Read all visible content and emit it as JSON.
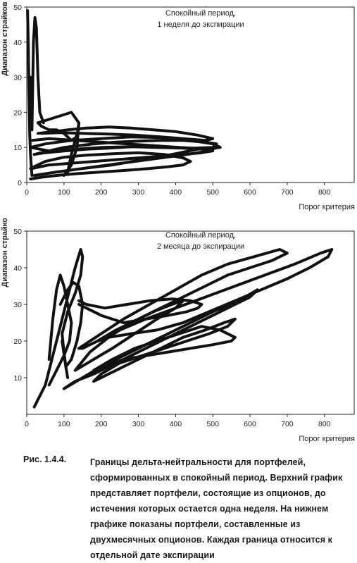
{
  "chart_data": [
    {
      "type": "line",
      "title": "Спокойный период,",
      "subtitle": "1 неделя до экспирации",
      "xlabel": "Порог критерия",
      "ylabel": "Диапазон страйков",
      "xlim": [
        0,
        880
      ],
      "ylim": [
        0,
        50
      ],
      "x_ticks": [
        0,
        100,
        200,
        300,
        400,
        500,
        600,
        700,
        800
      ],
      "y_ticks": [
        0,
        10,
        20,
        30,
        40,
        50
      ],
      "grid": false,
      "series": [
        {
          "x": [
            2,
            4,
            6,
            8,
            10,
            12,
            14
          ],
          "y": [
            49,
            40,
            25,
            14,
            8,
            5,
            2
          ]
        },
        {
          "x": [
            10,
            14,
            18,
            22,
            26,
            30,
            35,
            45
          ],
          "y": [
            30,
            15,
            40,
            47,
            44,
            30,
            20,
            17
          ]
        },
        {
          "x": [
            20,
            60,
            100,
            140,
            180,
            240,
            300,
            360,
            420,
            480,
            510,
            500,
            450,
            400,
            340,
            280,
            220,
            160,
            100,
            50,
            20
          ],
          "y": [
            8,
            9,
            10,
            10.5,
            11,
            11.5,
            11.8,
            12,
            12,
            11.5,
            11,
            10,
            9.8,
            10,
            10.5,
            10.2,
            9.8,
            9.5,
            9,
            8.5,
            8
          ]
        },
        {
          "x": [
            10,
            50,
            120,
            200,
            280,
            360,
            440,
            500,
            520,
            480,
            420,
            350,
            280,
            200,
            130,
            60,
            10
          ],
          "y": [
            10,
            11,
            12,
            12.5,
            13,
            12.8,
            12,
            11,
            10,
            9.5,
            9.8,
            10,
            10.2,
            10,
            9.5,
            9,
            10
          ]
        },
        {
          "x": [
            20,
            80,
            150,
            230,
            310,
            390,
            460,
            510,
            490,
            430,
            360,
            290,
            220,
            150,
            80,
            20
          ],
          "y": [
            2,
            3,
            4,
            5,
            6.5,
            8,
            9.5,
            10,
            9,
            8,
            7,
            6,
            5,
            4,
            3,
            2
          ]
        },
        {
          "x": [
            15,
            60,
            120,
            180,
            240,
            300,
            360,
            420,
            470,
            500,
            470,
            410,
            340,
            270,
            200,
            130,
            60,
            15
          ],
          "y": [
            4,
            5,
            5.5,
            6,
            6.5,
            7,
            7.5,
            8,
            8.5,
            9,
            9.5,
            10,
            10.5,
            11,
            11.5,
            12,
            12.5,
            12
          ]
        },
        {
          "x": [
            30,
            60,
            90,
            120,
            140,
            135,
            120,
            100,
            80,
            60,
            40,
            30
          ],
          "y": [
            17,
            18,
            19,
            20,
            17,
            13,
            12,
            14,
            15,
            15,
            16,
            17
          ]
        },
        {
          "x": [
            100,
            120,
            135,
            140,
            138,
            130,
            120,
            110
          ],
          "y": [
            2,
            5,
            10,
            17,
            15,
            12,
            8,
            3
          ]
        },
        {
          "x": [
            10,
            40,
            80,
            130,
            200,
            270,
            330,
            380,
            420,
            440,
            420,
            370,
            300,
            230,
            160,
            100,
            50,
            10
          ],
          "y": [
            1,
            1.5,
            2,
            2.5,
            3,
            3.5,
            4,
            4.5,
            5,
            6,
            7,
            8,
            8.5,
            8.2,
            7.8,
            7.2,
            6,
            4
          ]
        },
        {
          "x": [
            30,
            70,
            110,
            160,
            220,
            280,
            340,
            400,
            460,
            500,
            480,
            420,
            360,
            290,
            220,
            150,
            90,
            40
          ],
          "y": [
            14,
            14.5,
            15,
            15.5,
            15.8,
            15.5,
            15,
            14.5,
            13.5,
            12.5,
            12,
            12.5,
            13,
            13.5,
            13.8,
            14,
            14.2,
            14
          ]
        }
      ]
    },
    {
      "type": "line",
      "title": "Спокойный период,",
      "subtitle": "2 месяца до экспирации",
      "xlabel": "Порог критерия",
      "ylabel": "Диапазон страйков",
      "xlim": [
        0,
        880
      ],
      "ylim": [
        0,
        50
      ],
      "x_ticks": [
        0,
        100,
        200,
        300,
        400,
        500,
        600,
        700,
        800
      ],
      "y_ticks": [
        10,
        20,
        30,
        40,
        50
      ],
      "grid": false,
      "series": [
        {
          "x": [
            20,
            50,
            70,
            90,
            110,
            130,
            145,
            150,
            145,
            130,
            110,
            95,
            100,
            105,
            110
          ],
          "y": [
            2,
            8,
            16,
            24,
            32,
            40,
            45,
            43,
            38,
            33,
            28,
            22,
            17,
            13,
            10
          ]
        },
        {
          "x": [
            60,
            80,
            100,
            115,
            120,
            110,
            100,
            90,
            80,
            70,
            60
          ],
          "y": [
            8,
            12,
            16,
            20,
            25,
            30,
            35,
            38,
            34,
            26,
            15
          ]
        },
        {
          "x": [
            90,
            110,
            125,
            140,
            150,
            145,
            135,
            120,
            105,
            95
          ],
          "y": [
            30,
            34,
            36,
            35,
            30,
            25,
            20,
            15,
            13,
            20
          ]
        },
        {
          "x": [
            100,
            150,
            200,
            260,
            320,
            380,
            440,
            500,
            570,
            620,
            600,
            540,
            480,
            420,
            360,
            300,
            240,
            180,
            130,
            100
          ],
          "y": [
            7,
            10,
            13,
            16,
            19,
            22,
            25,
            28,
            31,
            34,
            32,
            29,
            26,
            23,
            20,
            17,
            14,
            11,
            9,
            7
          ]
        },
        {
          "x": [
            140,
            200,
            260,
            330,
            400,
            470,
            540,
            610,
            680,
            700,
            660,
            600,
            540,
            480,
            420,
            360,
            300,
            240,
            190,
            150,
            140
          ],
          "y": [
            18,
            22,
            26,
            30,
            34,
            38,
            41,
            43,
            45,
            44,
            42,
            40,
            38,
            35,
            32,
            29,
            26,
            23,
            20,
            18,
            18
          ]
        },
        {
          "x": [
            190,
            250,
            320,
            400,
            480,
            560,
            640,
            720,
            790,
            820,
            810,
            760,
            700,
            630,
            560,
            490,
            420,
            350,
            280,
            220,
            190
          ],
          "y": [
            20,
            23,
            26,
            29,
            32,
            35,
            38,
            41,
            44,
            45,
            43,
            40,
            37,
            34,
            31,
            28,
            25,
            23,
            22,
            21,
            20
          ]
        },
        {
          "x": [
            180,
            230,
            290,
            350,
            410,
            470,
            520,
            560,
            550,
            500,
            440,
            380,
            320,
            260,
            210,
            180
          ],
          "y": [
            12,
            15,
            18,
            20,
            22,
            24,
            23,
            21,
            20,
            19,
            18,
            17,
            16,
            15,
            13,
            12
          ]
        },
        {
          "x": [
            130,
            180,
            230,
            290,
            350,
            400,
            420,
            390,
            340,
            280,
            220,
            170,
            130
          ],
          "y": [
            12,
            15,
            18,
            22,
            26,
            29,
            31,
            30,
            28,
            25,
            21,
            17,
            12
          ]
        },
        {
          "x": [
            140,
            200,
            260,
            320,
            380,
            430,
            460,
            470,
            440,
            390,
            330,
            270,
            210,
            160,
            140
          ],
          "y": [
            30,
            27,
            25,
            26,
            27,
            28,
            29,
            30,
            31,
            31.5,
            31,
            30,
            29,
            30,
            31
          ]
        },
        {
          "x": [
            180,
            240,
            300,
            360,
            420,
            480,
            530,
            560,
            540,
            490,
            430,
            370,
            310,
            250,
            200,
            180
          ],
          "y": [
            9,
            12,
            15,
            18,
            21,
            23,
            25,
            26,
            24,
            22,
            20,
            18,
            16,
            14,
            11,
            9
          ]
        }
      ]
    }
  ],
  "caption": {
    "label": "Рис. 1.4.4.",
    "text": "Границы дельта-нейтральности для портфелей, сформированных в спокойный период. Верхний график представляет портфели, состоящие из опционов, до истечения которых остается одна неделя. На нижнем графике показаны портфели, составленные из двухмесячных опционов. Каждая граница относится к отдельной дате экспирации"
  },
  "colors": {
    "line": "#111111",
    "text": "#1a1a1a"
  }
}
